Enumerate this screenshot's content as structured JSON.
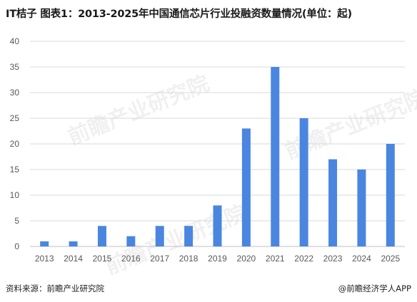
{
  "header": {
    "title": "IT桔子 图表1：2013-2025年中国通信芯片行业投融资数量情况(单位：起)"
  },
  "footer": {
    "source": "资料来源：前瞻产业研究院",
    "brand": "@前瞻经济学人APP"
  },
  "watermark": {
    "text": "前瞻产业研究院"
  },
  "colors": {
    "bar": "#4a86e0",
    "grid": "#d9d9d9",
    "axis": "#bfbfbf"
  },
  "chart_data": {
    "type": "bar",
    "title": "IT桔子 图表1：2013-2025年中国通信芯片行业投融资数量情况(单位：起)",
    "xlabel": "",
    "ylabel": "",
    "categories": [
      "2013",
      "2014",
      "2015",
      "2016",
      "2017",
      "2018",
      "2019",
      "2020",
      "2021",
      "2022",
      "2023",
      "2024",
      "2025"
    ],
    "values": [
      1,
      1,
      4,
      2,
      4,
      4,
      8,
      23,
      35,
      25,
      17,
      15,
      20
    ],
    "ylim": [
      0,
      40
    ],
    "yticks": [
      0,
      5,
      10,
      15,
      20,
      25,
      30,
      35,
      40
    ],
    "grid": true,
    "legend": "none"
  }
}
